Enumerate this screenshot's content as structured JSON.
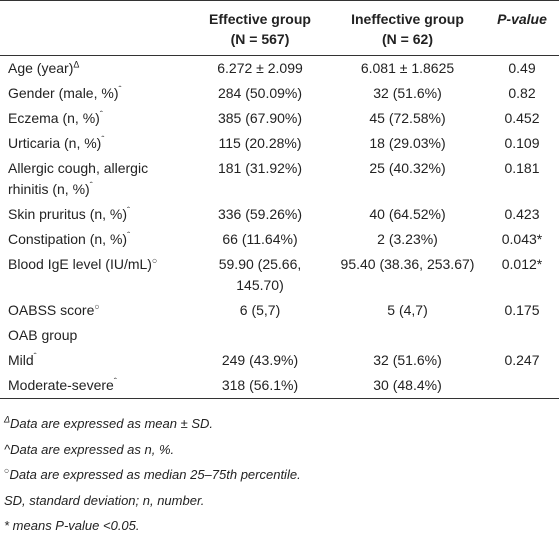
{
  "header": {
    "label": "",
    "effective": [
      "Effective group",
      "(N = 567)"
    ],
    "ineffective": [
      "Ineffective group",
      "(N = 62)"
    ],
    "p": "P-value"
  },
  "rows": [
    {
      "label": "Age (year)",
      "mark": "Δ",
      "effective": "6.272 ± 2.099",
      "ineffective": "6.081 ± 1.8625",
      "p": "0.49"
    },
    {
      "label": "Gender (male, %)",
      "mark": "ˆ",
      "effective": "284 (50.09%)",
      "ineffective": "32 (51.6%)",
      "p": "0.82"
    },
    {
      "label": "Eczema (n, %)",
      "mark": "ˆ",
      "effective": "385 (67.90%)",
      "ineffective": "45 (72.58%)",
      "p": "0.452"
    },
    {
      "label": "Urticaria (n, %)",
      "mark": "ˆ",
      "effective": "115 (20.28%)",
      "ineffective": "18 (29.03%)",
      "p": "0.109"
    },
    {
      "label": "Allergic cough, allergic rhinitis (n, %)",
      "mark": "ˆ",
      "effective": "181 (31.92%)",
      "ineffective": "25 (40.32%)",
      "p": "0.181"
    },
    {
      "label": "Skin pruritus (n, %)",
      "mark": "ˆ",
      "effective": "336 (59.26%)",
      "ineffective": "40 (64.52%)",
      "p": "0.423"
    },
    {
      "label": "Constipation (n, %)",
      "mark": "ˆ",
      "effective": "66 (11.64%)",
      "ineffective": "2 (3.23%)",
      "p": "0.043*"
    },
    {
      "label": "Blood IgE level (IU/mL)",
      "mark": "○",
      "effective": "59.90 (25.66, 145.70)",
      "ineffective": "95.40 (38.36, 253.67)",
      "p": "0.012*"
    },
    {
      "label": "OABSS score",
      "mark": "○",
      "effective": "6 (5,7)",
      "ineffective": "5 (4,7)",
      "p": "0.175"
    },
    {
      "label": "OAB group"
    },
    {
      "label": "Mild",
      "mark": "ˆ",
      "effective": "249 (43.9%)",
      "ineffective": "32 (51.6%)",
      "p": "0.247"
    },
    {
      "label": "Moderate-severe",
      "mark": "ˆ",
      "effective": "318 (56.1%)",
      "ineffective": "30 (48.4%)"
    }
  ],
  "footnotes": [
    {
      "mark": "Δ",
      "text": "Data are expressed as mean ± SD."
    },
    {
      "text": "^Data are expressed as n, %."
    },
    {
      "mark": "○",
      "text": "Data are expressed as median 25–75th percentile."
    },
    {
      "text": "SD, standard deviation; n, number."
    },
    {
      "text": "* means P-value <0.05."
    }
  ]
}
